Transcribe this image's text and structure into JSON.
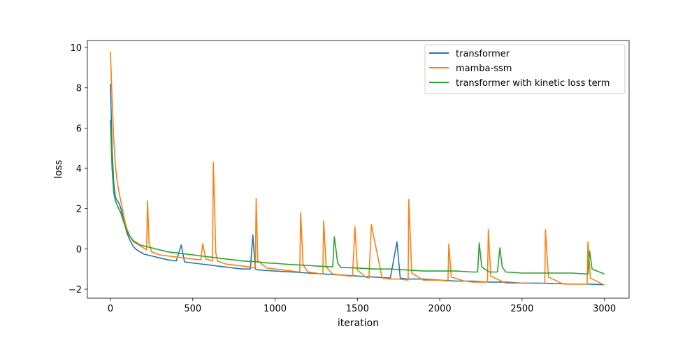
{
  "chart_data": {
    "type": "line",
    "xlabel": "iteration",
    "ylabel": "loss",
    "xlim": [
      -140,
      3150
    ],
    "ylim": [
      -2.45,
      10.35
    ],
    "xticks": [
      0,
      500,
      1000,
      1500,
      2000,
      2500,
      3000
    ],
    "yticks": [
      -2,
      0,
      2,
      4,
      6,
      8,
      10
    ],
    "ytick_labels": [
      "−2",
      "0",
      "2",
      "4",
      "6",
      "8",
      "10"
    ],
    "grid": false,
    "legend_position": "top-right",
    "series": [
      {
        "name": "transformer",
        "color": "#1f77b4",
        "x": [
          0,
          10,
          20,
          30,
          40,
          50,
          60,
          70,
          80,
          90,
          100,
          120,
          140,
          160,
          180,
          200,
          250,
          300,
          350,
          400,
          430,
          450,
          500,
          550,
          600,
          650,
          700,
          750,
          800,
          850,
          865,
          880,
          900,
          1000,
          1100,
          1200,
          1300,
          1400,
          1500,
          1600,
          1700,
          1740,
          1760,
          1800,
          1900,
          2000,
          2100,
          2200,
          2300,
          2400,
          2500,
          2600,
          2700,
          2800,
          2900,
          3000
        ],
        "y": [
          8.2,
          5.0,
          3.3,
          2.6,
          2.4,
          2.3,
          2.1,
          1.8,
          1.4,
          1.1,
          0.8,
          0.4,
          0.1,
          -0.05,
          -0.15,
          -0.25,
          -0.35,
          -0.45,
          -0.55,
          -0.6,
          0.2,
          -0.65,
          -0.7,
          -0.75,
          -0.8,
          -0.85,
          -0.9,
          -0.95,
          -1.0,
          -1.0,
          0.7,
          -1.0,
          -1.05,
          -1.1,
          -1.15,
          -1.2,
          -1.25,
          -1.3,
          -1.35,
          -1.4,
          -1.45,
          0.35,
          -1.45,
          -1.5,
          -1.5,
          -1.55,
          -1.6,
          -1.6,
          -1.65,
          -1.65,
          -1.7,
          -1.7,
          -1.72,
          -1.75,
          -1.75,
          -1.78
        ]
      },
      {
        "name": "mamba-ssm",
        "color": "#ff7f0e",
        "x": [
          0,
          10,
          20,
          30,
          40,
          50,
          60,
          70,
          80,
          90,
          100,
          120,
          140,
          160,
          180,
          200,
          220,
          225,
          235,
          250,
          300,
          350,
          400,
          450,
          500,
          550,
          560,
          580,
          600,
          620,
          625,
          640,
          650,
          700,
          750,
          800,
          850,
          880,
          885,
          895,
          950,
          1000,
          1050,
          1100,
          1150,
          1155,
          1170,
          1200,
          1250,
          1290,
          1295,
          1310,
          1350,
          1400,
          1450,
          1470,
          1485,
          1500,
          1550,
          1570,
          1585,
          1650,
          1700,
          1750,
          1808,
          1812,
          1830,
          1900,
          2000,
          2050,
          2055,
          2070,
          2150,
          2200,
          2250,
          2290,
          2295,
          2310,
          2400,
          2500,
          2600,
          2638,
          2642,
          2660,
          2750,
          2850,
          2895,
          2900,
          2915,
          3000
        ],
        "y": [
          9.8,
          7.5,
          5.5,
          4.2,
          3.4,
          2.9,
          2.5,
          2.1,
          1.7,
          1.3,
          1.0,
          0.6,
          0.35,
          0.25,
          0.15,
          0.05,
          -0.05,
          2.4,
          0.3,
          -0.15,
          -0.3,
          -0.35,
          -0.4,
          -0.45,
          -0.5,
          -0.55,
          0.25,
          -0.5,
          -0.55,
          -0.6,
          4.3,
          -0.2,
          -0.6,
          -0.75,
          -0.8,
          -0.85,
          -0.9,
          -0.95,
          2.5,
          -0.6,
          -0.95,
          -1.0,
          -1.05,
          -1.1,
          -1.15,
          1.8,
          -0.8,
          -1.15,
          -1.2,
          -1.25,
          1.4,
          -0.9,
          -1.25,
          -1.3,
          -1.35,
          -1.35,
          1.1,
          -1.05,
          -1.4,
          -1.45,
          1.2,
          -1.45,
          -1.5,
          -1.5,
          -1.55,
          2.45,
          -1.2,
          -1.55,
          -1.55,
          -1.6,
          0.25,
          -1.4,
          -1.6,
          -1.65,
          -1.65,
          -1.65,
          0.95,
          -1.35,
          -1.7,
          -1.7,
          -1.72,
          -1.72,
          0.95,
          -1.4,
          -1.75,
          -1.75,
          -1.75,
          0.35,
          -1.45,
          -1.8
        ]
      },
      {
        "name": "transformer with kinetic loss term",
        "color": "#2ca02c",
        "x": [
          0,
          10,
          20,
          30,
          40,
          50,
          60,
          70,
          80,
          90,
          100,
          120,
          140,
          160,
          180,
          200,
          250,
          300,
          350,
          400,
          450,
          500,
          550,
          600,
          650,
          700,
          750,
          800,
          850,
          900,
          950,
          1000,
          1050,
          1100,
          1150,
          1200,
          1250,
          1300,
          1350,
          1360,
          1380,
          1400,
          1500,
          1600,
          1700,
          1800,
          1900,
          2000,
          2100,
          2200,
          2230,
          2240,
          2255,
          2300,
          2350,
          2365,
          2380,
          2400,
          2500,
          2600,
          2700,
          2800,
          2900,
          2910,
          2925,
          3000
        ],
        "y": [
          6.4,
          4.0,
          2.8,
          2.4,
          2.2,
          2.0,
          1.85,
          1.6,
          1.35,
          1.1,
          0.9,
          0.6,
          0.4,
          0.3,
          0.2,
          0.15,
          0.05,
          -0.05,
          -0.15,
          -0.2,
          -0.25,
          -0.3,
          -0.35,
          -0.4,
          -0.45,
          -0.5,
          -0.55,
          -0.6,
          -0.62,
          -0.65,
          -0.7,
          -0.72,
          -0.75,
          -0.78,
          -0.8,
          -0.82,
          -0.85,
          -0.87,
          -0.9,
          0.6,
          -0.7,
          -0.92,
          -0.95,
          -1.0,
          -1.0,
          -1.05,
          -1.1,
          -1.1,
          -1.1,
          -1.15,
          -1.15,
          0.3,
          -0.9,
          -1.15,
          -1.15,
          0.05,
          -0.9,
          -1.15,
          -1.2,
          -1.2,
          -1.2,
          -1.2,
          -1.25,
          -0.1,
          -1.0,
          -1.25
        ]
      }
    ]
  }
}
